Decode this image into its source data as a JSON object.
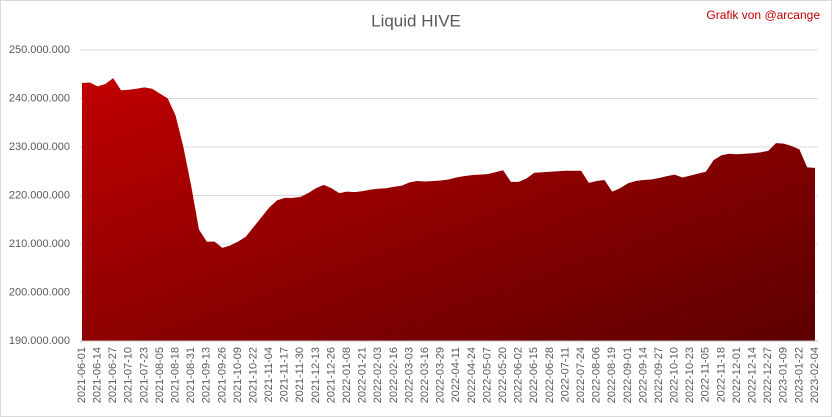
{
  "chart_data": {
    "type": "area",
    "title": "Liquid HIVE",
    "credit": "Grafik von @arcange",
    "color": "#c00000",
    "grid": true,
    "categories": [
      "2021-06-01",
      null,
      "2021-06-14",
      null,
      "2021-06-27",
      null,
      "2021-07-10",
      null,
      "2021-07-23",
      null,
      "2021-08-05",
      null,
      "2021-08-18",
      null,
      "2021-08-31",
      null,
      "2021-09-13",
      null,
      "2021-09-26",
      null,
      "2021-10-09",
      null,
      "2021-10-22",
      null,
      "2021-11-04",
      null,
      "2021-11-17",
      null,
      "2021-11-30",
      null,
      "2021-12-13",
      null,
      "2021-12-26",
      null,
      "2022-01-08",
      null,
      "2022-01-21",
      null,
      "2022-02-03",
      null,
      "2022-02-16",
      null,
      "2022-03-03",
      null,
      "2022-03-16",
      null,
      "2022-03-29",
      null,
      "2022-04-11",
      null,
      "2022-04-24",
      null,
      "2022-05-07",
      null,
      "2022-05-20",
      null,
      "2022-06-02",
      null,
      "2022-06-15",
      null,
      "2022-06-28",
      null,
      "2022-07-11",
      null,
      "2022-07-24",
      null,
      "2022-08-06",
      null,
      "2022-08-19",
      null,
      "2022-09-01",
      null,
      "2022-09-14",
      null,
      "2022-09-27",
      null,
      "2022-10-10",
      null,
      "2022-10-23",
      null,
      "2022-11-05",
      null,
      "2022-11-18",
      null,
      "2022-12-01",
      null,
      "2022-12-14",
      null,
      "2022-12-27",
      null,
      "2023-01-09",
      null,
      "2023-01-22",
      null,
      "2023-02-04"
    ],
    "values": [
      243200000,
      243300000,
      242500000,
      243000000,
      244200000,
      241700000,
      241800000,
      242000000,
      242300000,
      242000000,
      241000000,
      240000000,
      236500000,
      230000000,
      222000000,
      213000000,
      210500000,
      210500000,
      209200000,
      209700000,
      210500000,
      211500000,
      213500000,
      215500000,
      217500000,
      219000000,
      219500000,
      219500000,
      219700000,
      220500000,
      221500000,
      222200000,
      221500000,
      220500000,
      220800000,
      220700000,
      220900000,
      221200000,
      221400000,
      221500000,
      221800000,
      222000000,
      222700000,
      223000000,
      222900000,
      223000000,
      223100000,
      223300000,
      223700000,
      224000000,
      224200000,
      224300000,
      224400000,
      224800000,
      225200000,
      222800000,
      222800000,
      223500000,
      224700000,
      224800000,
      224900000,
      225000000,
      225100000,
      225100000,
      225100000,
      222600000,
      223000000,
      223200000,
      220800000,
      221500000,
      222500000,
      223000000,
      223200000,
      223300000,
      223600000,
      224000000,
      224300000,
      223700000,
      224100000,
      224500000,
      224900000,
      227300000,
      228300000,
      228600000,
      228500000,
      228600000,
      228700000,
      228900000,
      229200000,
      230800000,
      230700000,
      230200000,
      229500000,
      225800000,
      225700000
    ],
    "ylim": [
      190000000,
      250000000
    ],
    "yticks": [
      {
        "value": 190000000,
        "label": "190.000.000"
      },
      {
        "value": 200000000,
        "label": "200.000.000"
      },
      {
        "value": 210000000,
        "label": "210.000.000"
      },
      {
        "value": 220000000,
        "label": "220.000.000"
      },
      {
        "value": 230000000,
        "label": "230.000.000"
      },
      {
        "value": 240000000,
        "label": "240.000.000"
      },
      {
        "value": 250000000,
        "label": "250.000.000"
      }
    ]
  }
}
